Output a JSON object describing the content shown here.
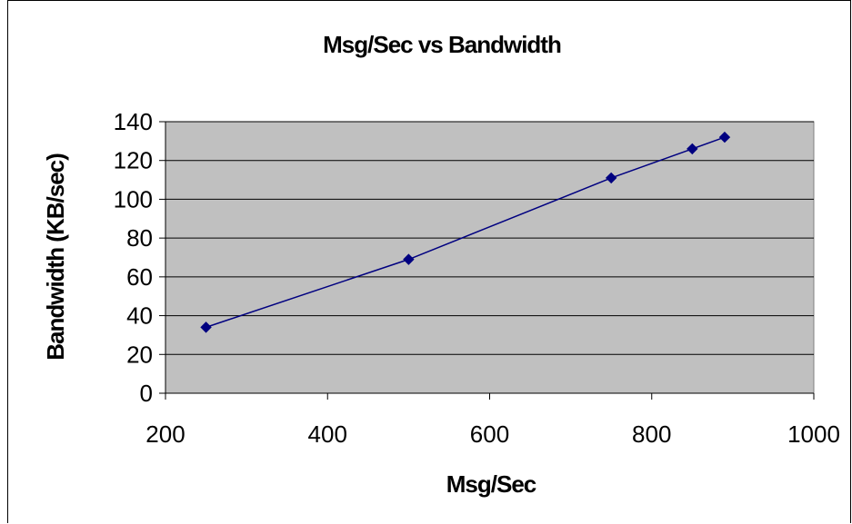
{
  "chart_data": {
    "type": "line",
    "title": "Msg/Sec vs Bandwidth",
    "xlabel": "Msg/Sec",
    "ylabel": "Bandwidth (KB/sec)",
    "xlim": [
      200,
      1000
    ],
    "ylim": [
      0,
      140
    ],
    "x_ticks": [
      "200",
      "400",
      "600",
      "800",
      "1000"
    ],
    "y_ticks": [
      "0",
      "20",
      "40",
      "60",
      "80",
      "100",
      "120",
      "140"
    ],
    "grid": "horizontal",
    "legend": "none",
    "series": [
      {
        "x": [
          250,
          500,
          750,
          850,
          890
        ],
        "y": [
          34,
          69,
          111,
          126,
          132
        ],
        "color": "#000080",
        "marker": "diamond"
      }
    ],
    "plot_background": "#c0c0c0"
  }
}
